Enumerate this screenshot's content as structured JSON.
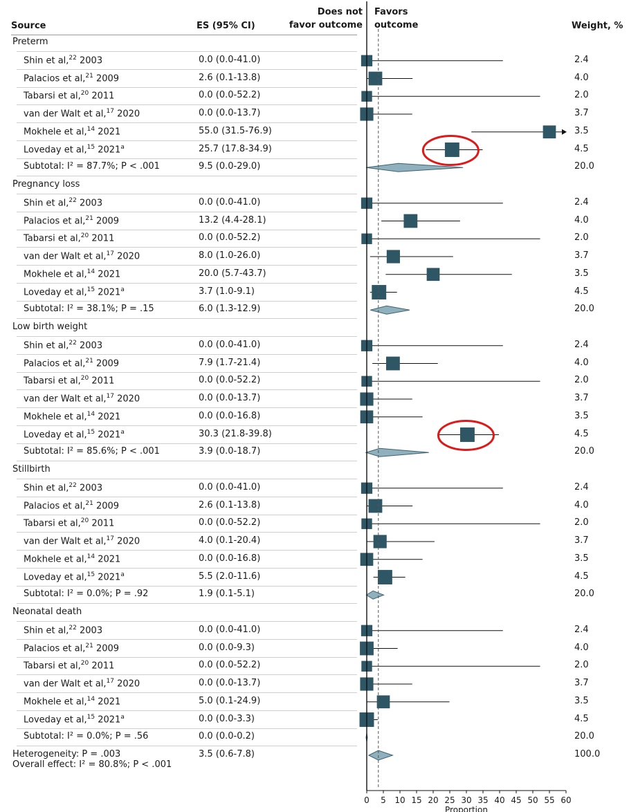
{
  "headers": {
    "source": "Source",
    "es": "ES (95% CI)",
    "weight": "Weight, %",
    "favor_left_1": "Does not",
    "favor_left_2": "favor outcome",
    "favor_right_1": "Favors",
    "favor_right_2": "outcome"
  },
  "colors": {
    "marker": "#2e5664",
    "diamond": "#8fb0bc",
    "circle": "#e01818",
    "dashed": "#555555"
  },
  "chart_data": {
    "type": "forest",
    "xlabel": "Proportion",
    "xlim": [
      0,
      60
    ],
    "xticks": [
      0,
      5,
      10,
      15,
      20,
      25,
      30,
      35,
      40,
      45,
      50,
      55,
      60
    ],
    "reference_line": 3.5,
    "highlighted": [
      "Preterm / Loveday et al, 2021",
      "Low birth weight / Loveday et al, 2021"
    ],
    "groups": [
      {
        "name": "Preterm",
        "studies": [
          {
            "label": "Shin et al,",
            "ref": "22",
            "year": "2003",
            "sup_a": false,
            "es_text": "0.0 (0.0-41.0)",
            "es": 0.0,
            "lo": 0.0,
            "hi": 41.0,
            "weight": "2.4"
          },
          {
            "label": "Palacios et al,",
            "ref": "21",
            "year": "2009",
            "sup_a": false,
            "es_text": "2.6 (0.1-13.8)",
            "es": 2.6,
            "lo": 0.1,
            "hi": 13.8,
            "weight": "4.0"
          },
          {
            "label": "Tabarsi et al,",
            "ref": "20",
            "year": "2011",
            "sup_a": false,
            "es_text": "0.0 (0.0-52.2)",
            "es": 0.0,
            "lo": 0.0,
            "hi": 52.2,
            "weight": "2.0"
          },
          {
            "label": "van der Walt et al,",
            "ref": "17",
            "year": "2020",
            "sup_a": false,
            "es_text": "0.0 (0.0-13.7)",
            "es": 0.0,
            "lo": 0.0,
            "hi": 13.7,
            "weight": "3.7"
          },
          {
            "label": "Mokhele et al,",
            "ref": "14",
            "year": "2021",
            "sup_a": false,
            "es_text": "55.0 (31.5-76.9)",
            "es": 55.0,
            "lo": 31.5,
            "hi": 76.9,
            "weight": "3.5"
          },
          {
            "label": "Loveday et al,",
            "ref": "15",
            "year": "2021",
            "sup_a": true,
            "es_text": "25.7 (17.8-34.9)",
            "es": 25.7,
            "lo": 17.8,
            "hi": 34.9,
            "weight": "4.5",
            "circled": true
          }
        ],
        "subtotal": {
          "stat": "Subtotal: I² = 87.7%; P < .001",
          "es_text": "9.5 (0.0-29.0)",
          "es": 9.5,
          "lo": 0.0,
          "hi": 29.0,
          "weight": "20.0"
        }
      },
      {
        "name": "Pregnancy loss",
        "studies": [
          {
            "label": "Shin et al,",
            "ref": "22",
            "year": "2003",
            "sup_a": false,
            "es_text": "0.0 (0.0-41.0)",
            "es": 0.0,
            "lo": 0.0,
            "hi": 41.0,
            "weight": "2.4"
          },
          {
            "label": "Palacios et al,",
            "ref": "21",
            "year": "2009",
            "sup_a": false,
            "es_text": "13.2 (4.4-28.1)",
            "es": 13.2,
            "lo": 4.4,
            "hi": 28.1,
            "weight": "4.0"
          },
          {
            "label": "Tabarsi et al,",
            "ref": "20",
            "year": "2011",
            "sup_a": false,
            "es_text": "0.0 (0.0-52.2)",
            "es": 0.0,
            "lo": 0.0,
            "hi": 52.2,
            "weight": "2.0"
          },
          {
            "label": "van der Walt et al,",
            "ref": "17",
            "year": "2020",
            "sup_a": false,
            "es_text": "8.0 (1.0-26.0)",
            "es": 8.0,
            "lo": 1.0,
            "hi": 26.0,
            "weight": "3.7"
          },
          {
            "label": "Mokhele et al,",
            "ref": "14",
            "year": "2021",
            "sup_a": false,
            "es_text": "20.0 (5.7-43.7)",
            "es": 20.0,
            "lo": 5.7,
            "hi": 43.7,
            "weight": "3.5"
          },
          {
            "label": "Loveday et al,",
            "ref": "15",
            "year": "2021",
            "sup_a": true,
            "es_text": "3.7 (1.0-9.1)",
            "es": 3.7,
            "lo": 1.0,
            "hi": 9.1,
            "weight": "4.5"
          }
        ],
        "subtotal": {
          "stat": "Subtotal: I² = 38.1%; P = .15",
          "es_text": "6.0 (1.3-12.9)",
          "es": 6.0,
          "lo": 1.3,
          "hi": 12.9,
          "weight": "20.0"
        }
      },
      {
        "name": "Low birth weight",
        "studies": [
          {
            "label": "Shin et al,",
            "ref": "22",
            "year": "2003",
            "sup_a": false,
            "es_text": "0.0 (0.0-41.0)",
            "es": 0.0,
            "lo": 0.0,
            "hi": 41.0,
            "weight": "2.4"
          },
          {
            "label": "Palacios et al,",
            "ref": "21",
            "year": "2009",
            "sup_a": false,
            "es_text": "7.9 (1.7-21.4)",
            "es": 7.9,
            "lo": 1.7,
            "hi": 21.4,
            "weight": "4.0"
          },
          {
            "label": "Tabarsi et al,",
            "ref": "20",
            "year": "2011",
            "sup_a": false,
            "es_text": "0.0 (0.0-52.2)",
            "es": 0.0,
            "lo": 0.0,
            "hi": 52.2,
            "weight": "2.0"
          },
          {
            "label": "van der Walt et al,",
            "ref": "17",
            "year": "2020",
            "sup_a": false,
            "es_text": "0.0 (0.0-13.7)",
            "es": 0.0,
            "lo": 0.0,
            "hi": 13.7,
            "weight": "3.7"
          },
          {
            "label": "Mokhele et al,",
            "ref": "14",
            "year": "2021",
            "sup_a": false,
            "es_text": "0.0 (0.0-16.8)",
            "es": 0.0,
            "lo": 0.0,
            "hi": 16.8,
            "weight": "3.5"
          },
          {
            "label": "Loveday et al,",
            "ref": "15",
            "year": "2021",
            "sup_a": true,
            "es_text": "30.3 (21.8-39.8)",
            "es": 30.3,
            "lo": 21.8,
            "hi": 39.8,
            "weight": "4.5",
            "circled": true
          }
        ],
        "subtotal": {
          "stat": "Subtotal: I² = 85.6%; P < .001",
          "es_text": "3.9 (0.0-18.7)",
          "es": 3.9,
          "lo": 0.0,
          "hi": 18.7,
          "weight": "20.0"
        }
      },
      {
        "name": "Stillbirth",
        "studies": [
          {
            "label": "Shin et al,",
            "ref": "22",
            "year": "2003",
            "sup_a": false,
            "es_text": "0.0 (0.0-41.0)",
            "es": 0.0,
            "lo": 0.0,
            "hi": 41.0,
            "weight": "2.4"
          },
          {
            "label": "Palacios et al,",
            "ref": "21",
            "year": "2009",
            "sup_a": false,
            "es_text": "2.6 (0.1-13.8)",
            "es": 2.6,
            "lo": 0.1,
            "hi": 13.8,
            "weight": "4.0"
          },
          {
            "label": "Tabarsi et al,",
            "ref": "20",
            "year": "2011",
            "sup_a": false,
            "es_text": "0.0 (0.0-52.2)",
            "es": 0.0,
            "lo": 0.0,
            "hi": 52.2,
            "weight": "2.0"
          },
          {
            "label": "van der Walt et al,",
            "ref": "17",
            "year": "2020",
            "sup_a": false,
            "es_text": "4.0 (0.1-20.4)",
            "es": 4.0,
            "lo": 0.1,
            "hi": 20.4,
            "weight": "3.7"
          },
          {
            "label": "Mokhele et al,",
            "ref": "14",
            "year": "2021",
            "sup_a": false,
            "es_text": "0.0 (0.0-16.8)",
            "es": 0.0,
            "lo": 0.0,
            "hi": 16.8,
            "weight": "3.5"
          },
          {
            "label": "Loveday et al,",
            "ref": "15",
            "year": "2021",
            "sup_a": true,
            "es_text": "5.5 (2.0-11.6)",
            "es": 5.5,
            "lo": 2.0,
            "hi": 11.6,
            "weight": "4.5"
          }
        ],
        "subtotal": {
          "stat": "Subtotal: I² = 0.0%; P = .92",
          "es_text": "1.9 (0.1-5.1)",
          "es": 1.9,
          "lo": 0.1,
          "hi": 5.1,
          "weight": "20.0"
        }
      },
      {
        "name": "Neonatal death",
        "studies": [
          {
            "label": "Shin et al,",
            "ref": "22",
            "year": "2003",
            "sup_a": false,
            "es_text": "0.0 (0.0-41.0)",
            "es": 0.0,
            "lo": 0.0,
            "hi": 41.0,
            "weight": "2.4"
          },
          {
            "label": "Palacios et al,",
            "ref": "21",
            "year": "2009",
            "sup_a": false,
            "es_text": "0.0 (0.0-9.3)",
            "es": 0.0,
            "lo": 0.0,
            "hi": 9.3,
            "weight": "4.0"
          },
          {
            "label": "Tabarsi et al,",
            "ref": "20",
            "year": "2011",
            "sup_a": false,
            "es_text": "0.0 (0.0-52.2)",
            "es": 0.0,
            "lo": 0.0,
            "hi": 52.2,
            "weight": "2.0"
          },
          {
            "label": "van der Walt et al,",
            "ref": "17",
            "year": "2020",
            "sup_a": false,
            "es_text": "0.0 (0.0-13.7)",
            "es": 0.0,
            "lo": 0.0,
            "hi": 13.7,
            "weight": "3.7"
          },
          {
            "label": "Mokhele et al,",
            "ref": "14",
            "year": "2021",
            "sup_a": false,
            "es_text": "5.0 (0.1-24.9)",
            "es": 5.0,
            "lo": 0.1,
            "hi": 24.9,
            "weight": "3.5"
          },
          {
            "label": "Loveday et al,",
            "ref": "15",
            "year": "2021",
            "sup_a": true,
            "es_text": "0.0 (0.0-3.3)",
            "es": 0.0,
            "lo": 0.0,
            "hi": 3.3,
            "weight": "4.5"
          }
        ],
        "subtotal": {
          "stat": "Subtotal: I² = 0.0%; P = .56",
          "es_text": "0.0 (0.0-0.2)",
          "es": 0.0,
          "lo": 0.0,
          "hi": 0.2,
          "weight": "20.0"
        }
      }
    ],
    "overall": {
      "stat_line1": "Heterogeneity: P = .003",
      "stat_line2": "Overall effect: I² = 80.8%; P < .001",
      "es_text": "3.5 (0.6-7.8)",
      "es": 3.5,
      "lo": 0.6,
      "hi": 7.8,
      "weight": "100.0"
    }
  }
}
